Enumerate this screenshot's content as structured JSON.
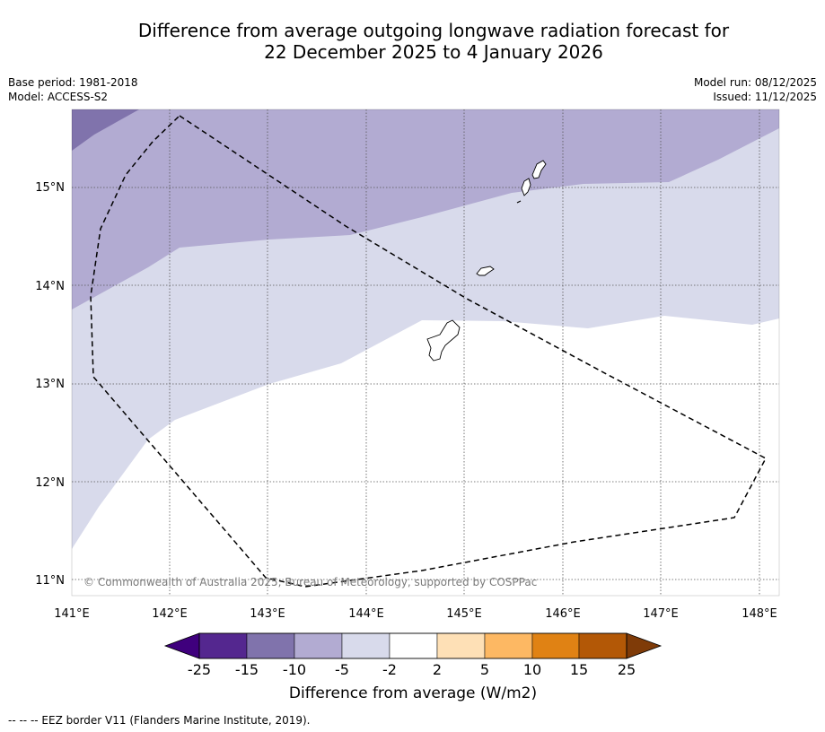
{
  "title": {
    "line1": "Difference from average outgoing longwave radiation forecast for",
    "line2": "22 December 2025 to 4 January 2026"
  },
  "meta": {
    "base_period": "Base period: 1981-2018",
    "model": "Model: ACCESS-S2",
    "model_run": "Model run: 08/12/2025",
    "issued": "Issued: 11/12/2025"
  },
  "axes": {
    "x_ticks": [
      "141°E",
      "142°E",
      "143°E",
      "144°E",
      "145°E",
      "146°E",
      "147°E",
      "148°E"
    ],
    "y_ticks": [
      "15°N",
      "14°N",
      "13°N",
      "12°N",
      "11°N"
    ]
  },
  "copyright": "© Commonwealth of Australia 2025, Bureau of Meteorology, supported by COSPPac",
  "colorbar": {
    "label": "Difference from average (W/m2)",
    "ticks": [
      "-25",
      "-15",
      "-10",
      "-5",
      "-2",
      "2",
      "5",
      "10",
      "15",
      "25"
    ],
    "low_extend_color": "#3f007d",
    "high_extend_color": "#7f3b08",
    "colors": [
      "#54278f",
      "#8073ac",
      "#b2abd2",
      "#d8daeb",
      "#ffffff",
      "#fee0b6",
      "#fdb863",
      "#e08214",
      "#b35806"
    ]
  },
  "legend_note": "--  --  -- EEZ border V11 (Flanders Marine Institute, 2019)."
}
